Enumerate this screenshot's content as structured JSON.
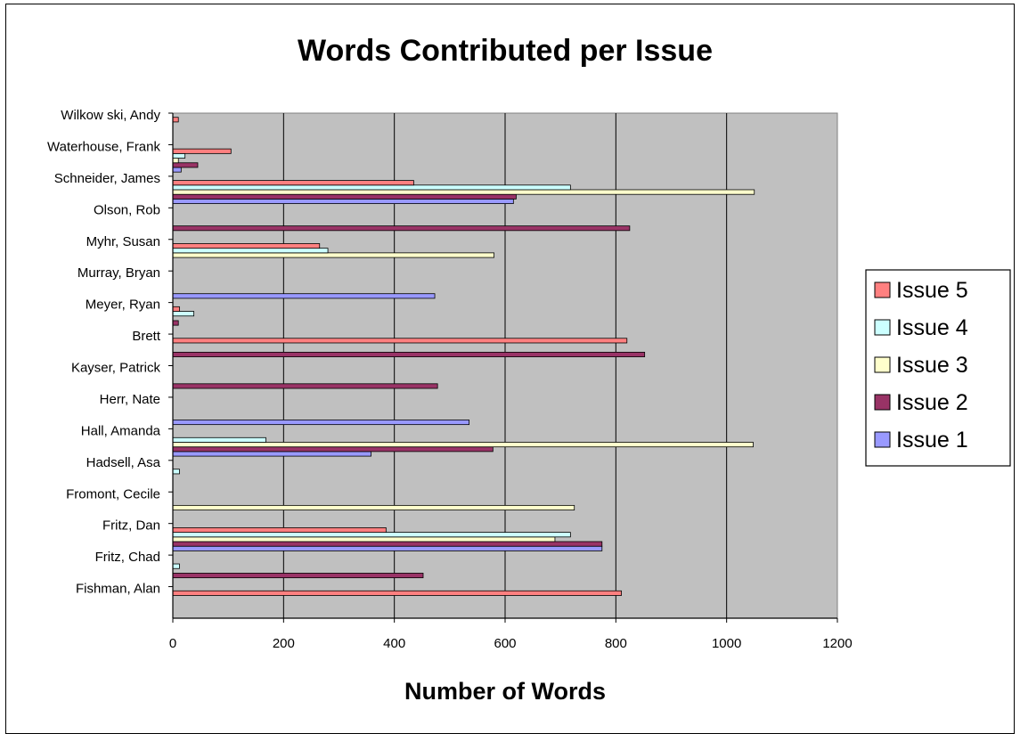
{
  "chart_data": {
    "type": "bar",
    "orientation": "horizontal",
    "title": "Words Contributed per Issue",
    "xlabel": "Number of Words",
    "ylabel": "",
    "xlim": [
      0,
      1200
    ],
    "x_ticks": [
      "0",
      "200",
      "400",
      "600",
      "800",
      "1000",
      "1200"
    ],
    "grid": "vertical",
    "legend_position": "right",
    "background": "#c0c0c0",
    "categories": [
      "Fishman, Alan",
      "Fritz, Chad",
      "Fritz, Dan",
      "Fromont, Cecile",
      "Hadsell, Asa",
      "Hall, Amanda",
      "Herr, Nate",
      "Kayser, Patrick",
      "Brett",
      "Meyer, Ryan",
      "Murray, Bryan",
      "Myhr, Susan",
      "Olson, Rob",
      "Schneider, James",
      "Waterhouse, Frank",
      "Wilkow ski, Andy"
    ],
    "series": [
      {
        "name": "Issue 1",
        "color": "#9999ff",
        "values": [
          0,
          0,
          775,
          0,
          0,
          358,
          535,
          0,
          0,
          0,
          473,
          0,
          0,
          615,
          15,
          0
        ]
      },
      {
        "name": "Issue 2",
        "color": "#993366",
        "values": [
          0,
          452,
          775,
          0,
          0,
          578,
          0,
          478,
          852,
          10,
          0,
          0,
          825,
          620,
          45,
          0
        ]
      },
      {
        "name": "Issue 3",
        "color": "#ffffcc",
        "values": [
          0,
          0,
          690,
          725,
          0,
          1048,
          0,
          0,
          0,
          0,
          0,
          580,
          0,
          1050,
          10,
          0
        ]
      },
      {
        "name": "Issue 4",
        "color": "#ccffff",
        "values": [
          0,
          12,
          718,
          0,
          12,
          168,
          0,
          0,
          0,
          38,
          0,
          280,
          0,
          718,
          22,
          0
        ]
      },
      {
        "name": "Issue 5",
        "color": "#ff8080",
        "values": [
          810,
          0,
          385,
          0,
          0,
          0,
          0,
          0,
          820,
          12,
          0,
          265,
          0,
          435,
          105,
          10
        ]
      }
    ]
  }
}
